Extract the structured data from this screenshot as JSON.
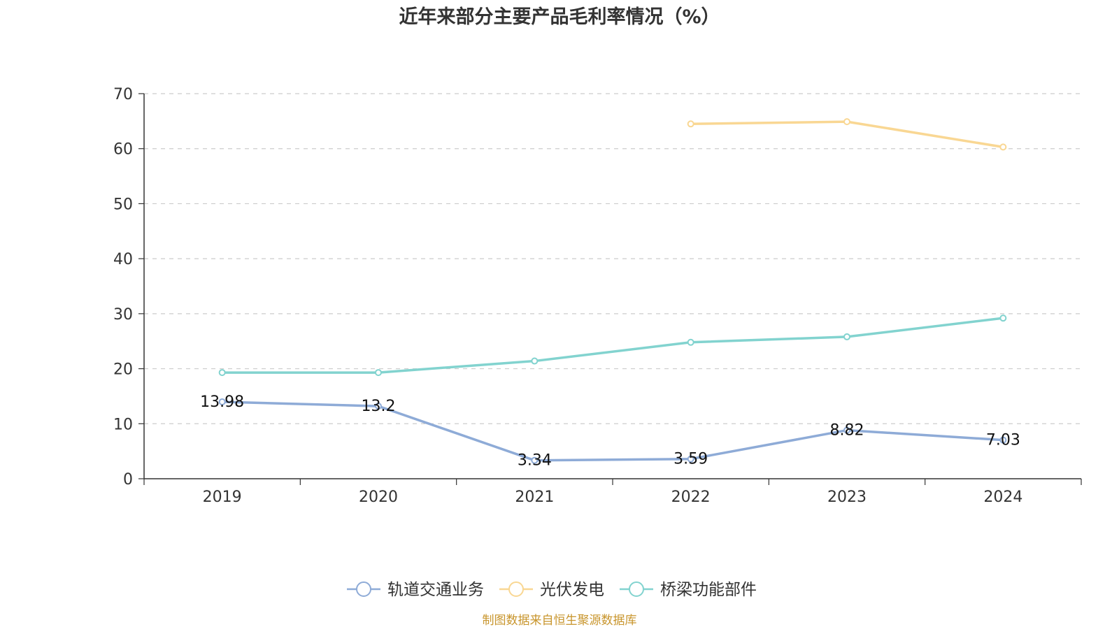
{
  "chart_data": {
    "type": "line",
    "title": "近年来部分主要产品毛利率情况（%）",
    "xlabel": "",
    "ylabel": "",
    "categories": [
      "2019",
      "2020",
      "2021",
      "2022",
      "2023",
      "2024"
    ],
    "ylim": [
      0,
      70
    ],
    "yticks": [
      "0",
      "10",
      "20",
      "30",
      "40",
      "50",
      "60",
      "70"
    ],
    "grid": true,
    "legend_position": "bottom",
    "series": [
      {
        "name": "轨道交通业务",
        "color": "#8eabd7",
        "values": [
          13.98,
          13.2,
          3.34,
          3.59,
          8.82,
          7.03
        ],
        "labels": [
          "13.98",
          "13.2",
          "3.34",
          "3.59",
          "8.82",
          "7.03"
        ]
      },
      {
        "name": "光伏发电",
        "color": "#f9d793",
        "values": [
          null,
          null,
          null,
          64.5,
          64.9,
          60.3
        ],
        "labels": []
      },
      {
        "name": "桥梁功能部件",
        "color": "#82d3cf",
        "values": [
          19.3,
          19.3,
          21.4,
          24.8,
          25.8,
          29.2
        ],
        "labels": []
      }
    ],
    "source": "制图数据来自恒生聚源数据库"
  }
}
